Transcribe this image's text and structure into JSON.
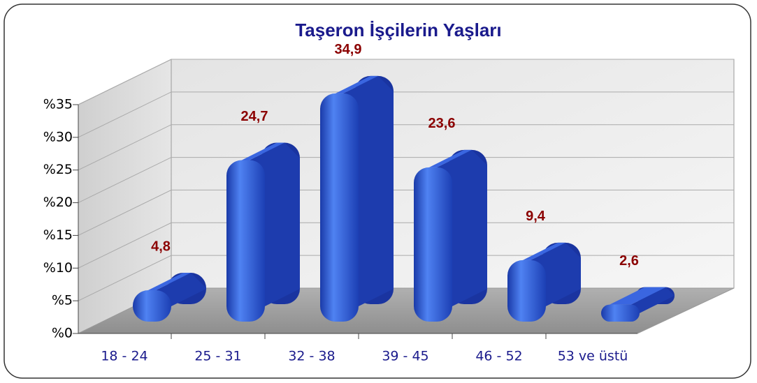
{
  "chart_data": {
    "type": "bar3d",
    "title": "Taşeron  İşçilerin Yaşları",
    "categories": [
      "18 - 24",
      "25 - 31",
      "32 - 38",
      "39 - 45",
      "46 - 52",
      "53 ve üstü"
    ],
    "values": [
      4.8,
      24.7,
      34.9,
      23.6,
      9.4,
      2.6
    ],
    "value_labels": [
      "4,8",
      "24,7",
      "34,9",
      "23,6",
      "9,4",
      "2,6"
    ],
    "color": "#2a55d6",
    "ylim": [
      0,
      35
    ],
    "yticks": [
      {
        "value": 0,
        "label": "%0"
      },
      {
        "value": 5,
        "label": "%5"
      },
      {
        "value": 10,
        "label": "%10"
      },
      {
        "value": 15,
        "label": "%15"
      },
      {
        "value": 20,
        "label": "%20"
      },
      {
        "value": 25,
        "label": "%25"
      },
      {
        "value": 30,
        "label": "%30"
      },
      {
        "value": 35,
        "label": "%35"
      }
    ],
    "grid": true
  }
}
